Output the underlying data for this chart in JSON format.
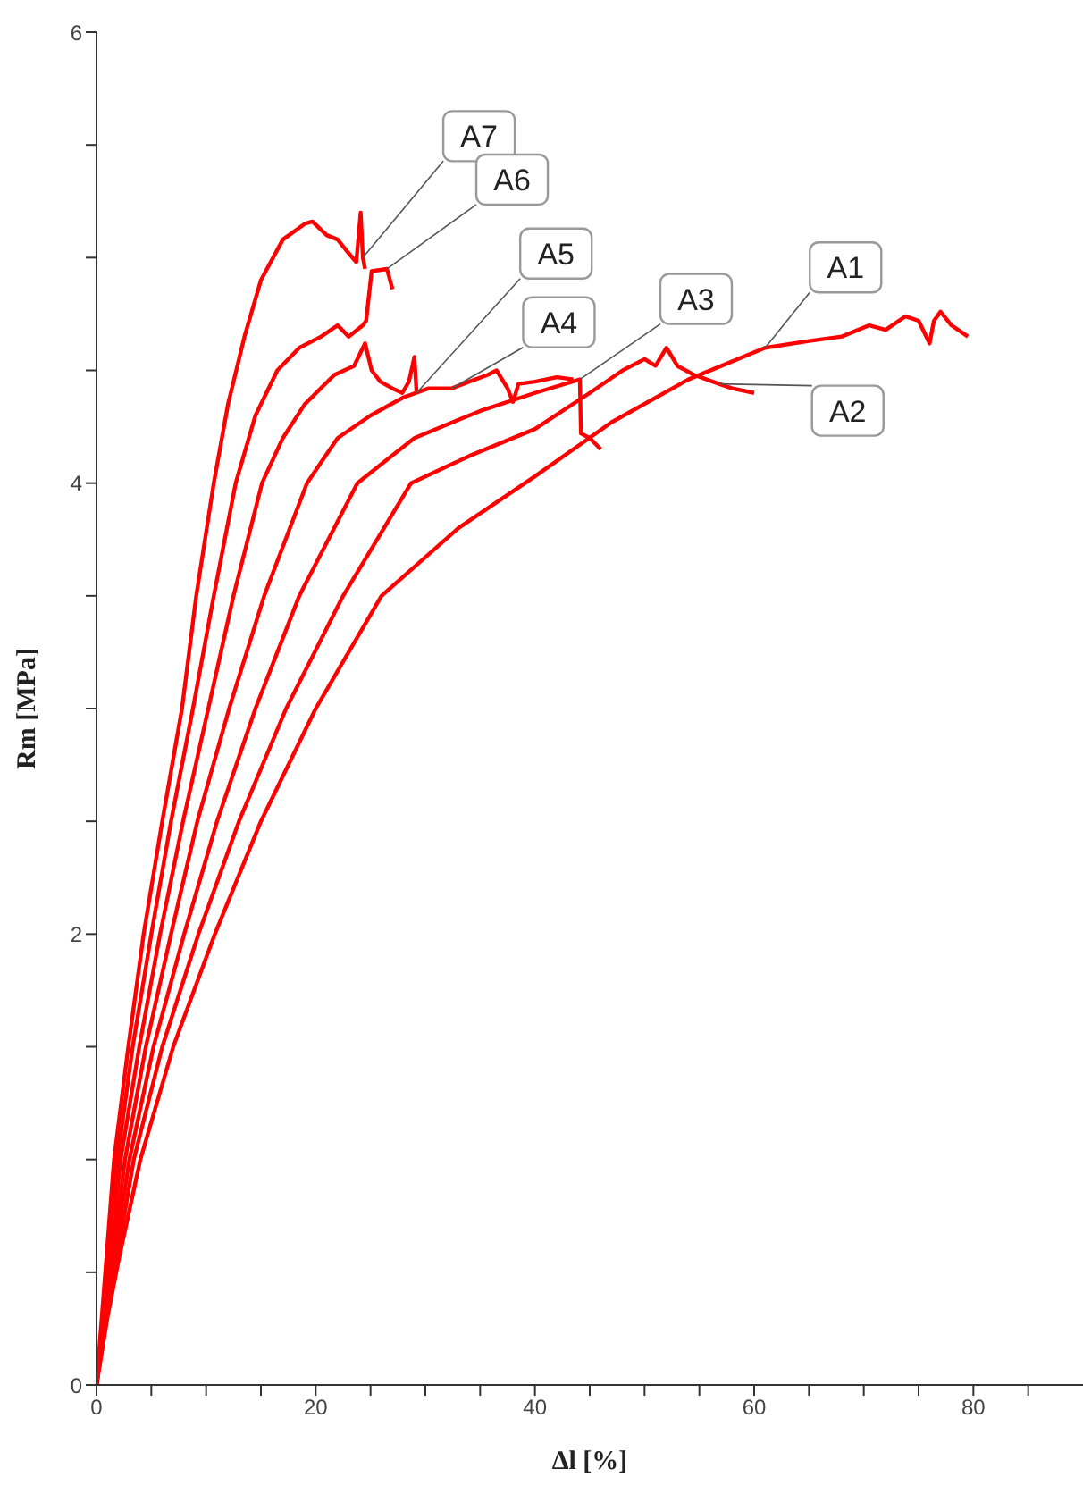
{
  "chart_data": {
    "type": "line",
    "xlabel": "Δl [%]",
    "ylabel": "Rm [MPa]",
    "xlim": [
      0,
      90
    ],
    "ylim": [
      0,
      6
    ],
    "xticks": [
      0,
      {
        "value": 5,
        "label": null
      },
      {
        "value": 10,
        "label": null
      },
      {
        "value": 15,
        "label": null
      },
      20,
      {
        "value": 25,
        "label": null
      },
      {
        "value": 30,
        "label": null
      },
      {
        "value": 35,
        "label": null
      },
      40,
      {
        "value": 45,
        "label": null
      },
      {
        "value": 50,
        "label": null
      },
      {
        "value": 55,
        "label": null
      },
      60,
      {
        "value": 65,
        "label": null
      },
      {
        "value": 70,
        "label": null
      },
      {
        "value": 75,
        "label": null
      },
      80,
      {
        "value": 85,
        "label": null
      }
    ],
    "yticks": [
      0,
      {
        "value": 0.5,
        "label": null
      },
      {
        "value": 1,
        "label": null
      },
      {
        "value": 1.5,
        "label": null
      },
      2,
      {
        "value": 2.5,
        "label": null
      },
      {
        "value": 3,
        "label": null
      },
      {
        "value": 3.5,
        "label": null
      },
      4,
      {
        "value": 4.5,
        "label": null
      },
      {
        "value": 5,
        "label": null
      },
      {
        "value": 5.5,
        "label": null
      },
      6
    ],
    "grid": false,
    "legend": false,
    "marker": "none",
    "line_style": "solid",
    "series": [
      {
        "color": "#ff0000",
        "x": [
          0,
          1,
          2,
          4,
          7,
          10.8,
          15,
          20,
          26,
          33,
          40,
          47,
          54,
          61,
          65,
          68,
          70.5,
          72,
          73.8,
          75,
          76,
          76.4,
          77,
          78,
          79.5
        ],
        "values": [
          0,
          0.3,
          0.55,
          1.0,
          1.5,
          2.0,
          2.5,
          3.0,
          3.5,
          3.8,
          4.03,
          4.27,
          4.46,
          4.6,
          4.63,
          4.65,
          4.7,
          4.68,
          4.74,
          4.72,
          4.62,
          4.72,
          4.76,
          4.7,
          4.65
        ]
      },
      {
        "color": "#ff0000",
        "x": [
          0,
          1,
          2,
          3.4,
          6,
          9.3,
          13,
          17.3,
          22.5,
          28.7,
          34,
          40,
          45,
          48,
          50,
          51,
          52,
          53,
          54.5,
          56.8,
          58,
          60
        ],
        "values": [
          0,
          0.33,
          0.6,
          1.0,
          1.5,
          2.0,
          2.5,
          3.0,
          3.5,
          4.0,
          4.12,
          4.24,
          4.4,
          4.5,
          4.55,
          4.52,
          4.6,
          4.52,
          4.48,
          4.44,
          4.42,
          4.4
        ]
      },
      {
        "color": "#ff0000",
        "x": [
          0,
          1,
          3,
          5.2,
          8,
          11,
          14.5,
          18.5,
          23.8,
          29,
          35,
          40,
          44.1,
          44.2,
          45,
          46
        ],
        "values": [
          0,
          0.36,
          1.0,
          1.5,
          2.0,
          2.5,
          3.0,
          3.5,
          4.0,
          4.2,
          4.32,
          4.4,
          4.46,
          4.22,
          4.2,
          4.15
        ]
      },
      {
        "color": "#ff0000",
        "x": [
          0,
          1,
          2.6,
          4.5,
          6.8,
          9.2,
          12.1,
          15.3,
          19.2,
          22,
          25,
          28,
          30.3,
          32.4,
          34,
          35.7,
          36.5,
          37.5,
          38,
          38.5,
          40,
          42,
          43.5
        ],
        "values": [
          0,
          0.4,
          1.0,
          1.5,
          2.0,
          2.5,
          3.0,
          3.5,
          4.0,
          4.2,
          4.3,
          4.38,
          4.42,
          4.42,
          4.45,
          4.48,
          4.5,
          4.42,
          4.36,
          4.44,
          4.45,
          4.47,
          4.46
        ]
      },
      {
        "color": "#ff0000",
        "x": [
          0,
          1,
          2.2,
          3.9,
          5.8,
          7.9,
          10.2,
          12.5,
          15.1,
          17,
          19,
          21.7,
          23.5,
          24.5,
          25.1,
          25.9,
          27,
          27.9,
          28.5,
          29,
          29.2
        ],
        "values": [
          0,
          0.45,
          1.0,
          1.5,
          2.0,
          2.5,
          3.0,
          3.5,
          4.0,
          4.2,
          4.35,
          4.48,
          4.52,
          4.62,
          4.5,
          4.45,
          4.42,
          4.4,
          4.45,
          4.56,
          4.4
        ]
      },
      {
        "color": "#ff0000",
        "x": [
          0,
          1,
          1.9,
          3.3,
          5,
          6.8,
          8.8,
          10.7,
          12.7,
          14.5,
          16.5,
          18.5,
          20.5,
          22,
          23,
          24.3,
          24.6,
          25.1,
          26.5,
          27
        ],
        "values": [
          0,
          0.5,
          1.0,
          1.5,
          2.0,
          2.5,
          3.0,
          3.5,
          4.0,
          4.3,
          4.5,
          4.6,
          4.65,
          4.7,
          4.65,
          4.7,
          4.72,
          4.94,
          4.95,
          4.86
        ]
      },
      {
        "color": "#ff0000",
        "x": [
          0,
          0.8,
          1.6,
          2.9,
          4.3,
          6,
          7.8,
          9.1,
          10.7,
          12,
          13.5,
          15,
          17,
          19,
          19.7,
          21,
          22,
          23,
          23.7,
          24.1,
          24.3,
          24.5
        ],
        "values": [
          0,
          0.5,
          1.0,
          1.5,
          2.0,
          2.5,
          3.0,
          3.5,
          4.0,
          4.35,
          4.65,
          4.9,
          5.08,
          5.15,
          5.16,
          5.1,
          5.08,
          5.02,
          4.98,
          5.2,
          5.0,
          4.95
        ]
      }
    ],
    "annotations": [
      {
        "text": "A7",
        "x": 24.3,
        "y": 5.0
      },
      {
        "text": "A6",
        "x": 26.5,
        "y": 4.95
      },
      {
        "text": "A5",
        "x": 29.2,
        "y": 4.4
      },
      {
        "text": "A4",
        "x": 32.4,
        "y": 4.42
      },
      {
        "text": "A3",
        "x": 44.1,
        "y": 4.46
      },
      {
        "text": "A1",
        "x": 61,
        "y": 4.6
      },
      {
        "text": "A2",
        "x": 56.8,
        "y": 4.44
      }
    ]
  }
}
